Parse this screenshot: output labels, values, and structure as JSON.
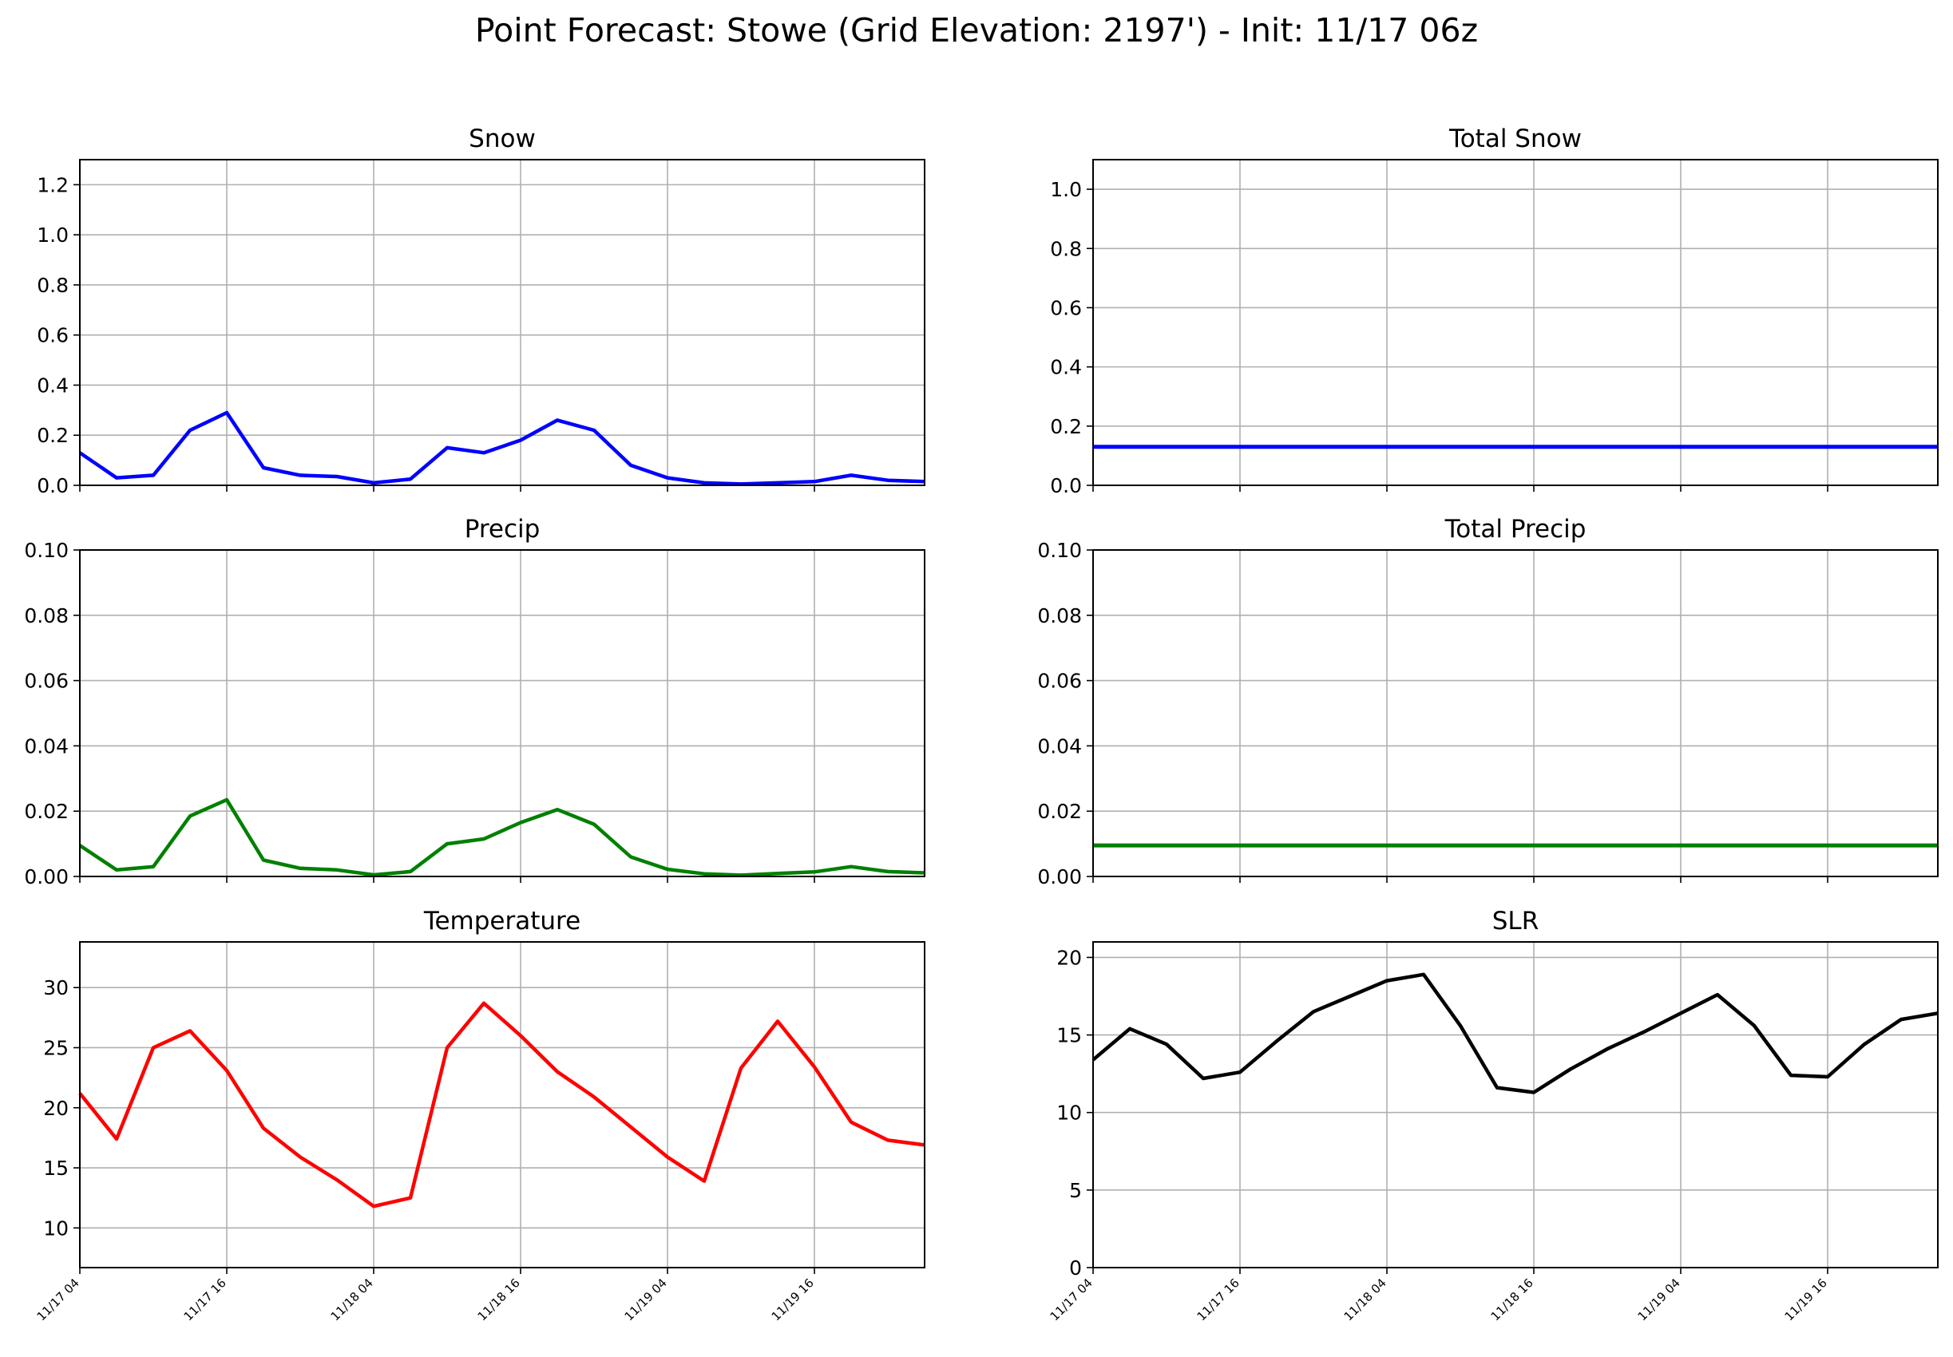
{
  "title": "Point Forecast: Stowe (Grid Elevation: 2197') - Init: 11/17 06z",
  "chart_data": [
    {
      "type": "line",
      "title": "Snow",
      "color": "#0000ff",
      "x_hours": [
        0,
        6,
        12,
        18,
        24,
        30,
        36,
        42,
        48,
        54,
        60,
        66,
        72,
        78,
        84,
        90,
        96,
        102,
        108,
        114,
        120,
        126,
        132,
        138
      ],
      "x_tick_labels": [
        "11/17 04",
        "11/17 16",
        "11/18 04",
        "11/18 16",
        "11/19 04",
        "11/19 16"
      ],
      "x_tick_hours": [
        0,
        24,
        48,
        72,
        96,
        120
      ],
      "xlim": [
        0,
        138
      ],
      "values": [
        0.13,
        0.03,
        0.04,
        0.22,
        0.29,
        0.07,
        0.04,
        0.035,
        0.01,
        0.025,
        0.15,
        0.13,
        0.18,
        0.26,
        0.22,
        0.08,
        0.03,
        0.01,
        0.005,
        0.01,
        0.015,
        0.04,
        0.02,
        0.015
      ],
      "ylim": [
        0,
        1.3
      ],
      "y_ticks": [
        0,
        0.2,
        0.4,
        0.6,
        0.8,
        1.0,
        1.2
      ],
      "y_tick_labels": [
        "0.0",
        "0.2",
        "0.4",
        "0.6",
        "0.8",
        "1.0",
        "1.2"
      ],
      "grid": true
    },
    {
      "type": "line",
      "title": "Total Snow",
      "color": "#0000ff",
      "x_hours": [
        0,
        138
      ],
      "x_tick_labels": [
        "11/17 04",
        "11/17 16",
        "11/18 04",
        "11/18 16",
        "11/19 04",
        "11/19 16"
      ],
      "x_tick_hours": [
        0,
        24,
        48,
        72,
        96,
        120
      ],
      "xlim": [
        0,
        138
      ],
      "values": [
        0.13,
        0.13
      ],
      "ylim": [
        0,
        1.1
      ],
      "y_ticks": [
        0,
        0.2,
        0.4,
        0.6,
        0.8,
        1.0
      ],
      "y_tick_labels": [
        "0.0",
        "0.2",
        "0.4",
        "0.6",
        "0.8",
        "1.0"
      ],
      "grid": true
    },
    {
      "type": "line",
      "title": "Precip",
      "color": "#008000",
      "x_hours": [
        0,
        6,
        12,
        18,
        24,
        30,
        36,
        42,
        48,
        54,
        60,
        66,
        72,
        78,
        84,
        90,
        96,
        102,
        108,
        114,
        120,
        126,
        132,
        138
      ],
      "x_tick_labels": [
        "11/17 04",
        "11/17 16",
        "11/18 04",
        "11/18 16",
        "11/19 04",
        "11/19 16"
      ],
      "x_tick_hours": [
        0,
        24,
        48,
        72,
        96,
        120
      ],
      "xlim": [
        0,
        138
      ],
      "values": [
        0.0095,
        0.002,
        0.003,
        0.0185,
        0.0235,
        0.005,
        0.0025,
        0.002,
        0.0005,
        0.0015,
        0.01,
        0.0115,
        0.0165,
        0.0205,
        0.016,
        0.006,
        0.0022,
        0.0008,
        0.0004,
        0.0009,
        0.0014,
        0.003,
        0.0015,
        0.0011
      ],
      "ylim": [
        0,
        0.1
      ],
      "y_ticks": [
        0,
        0.02,
        0.04,
        0.06,
        0.08,
        0.1
      ],
      "y_tick_labels": [
        "0.00",
        "0.02",
        "0.04",
        "0.06",
        "0.08",
        "0.10"
      ],
      "grid": true
    },
    {
      "type": "line",
      "title": "Total Precip",
      "color": "#008000",
      "x_hours": [
        0,
        138
      ],
      "x_tick_labels": [
        "11/17 04",
        "11/17 16",
        "11/18 04",
        "11/18 16",
        "11/19 04",
        "11/19 16"
      ],
      "x_tick_hours": [
        0,
        24,
        48,
        72,
        96,
        120
      ],
      "xlim": [
        0,
        138
      ],
      "values": [
        0.0095,
        0.0095
      ],
      "ylim": [
        0,
        0.1
      ],
      "y_ticks": [
        0,
        0.02,
        0.04,
        0.06,
        0.08,
        0.1
      ],
      "y_tick_labels": [
        "0.00",
        "0.02",
        "0.04",
        "0.06",
        "0.08",
        "0.10"
      ],
      "grid": true
    },
    {
      "type": "line",
      "title": "Temperature",
      "color": "#ff0000",
      "x_hours": [
        0,
        6,
        12,
        18,
        24,
        30,
        36,
        42,
        48,
        54,
        60,
        66,
        72,
        78,
        84,
        90,
        96,
        102,
        108,
        114,
        120,
        126,
        132,
        138
      ],
      "x_tick_labels": [
        "11/17 04",
        "11/17 16",
        "11/18 04",
        "11/18 16",
        "11/19 04",
        "11/19 16"
      ],
      "x_tick_hours": [
        0,
        24,
        48,
        72,
        96,
        120
      ],
      "xlim": [
        0,
        138
      ],
      "values": [
        21.2,
        17.4,
        25.0,
        26.4,
        23.1,
        18.3,
        15.9,
        14.0,
        11.8,
        12.5,
        25.0,
        28.7,
        26.0,
        23.0,
        20.9,
        18.4,
        15.9,
        13.9,
        23.3,
        27.2,
        23.4,
        18.8,
        17.3,
        16.9
      ],
      "ylim": [
        6.7,
        33.8
      ],
      "y_ticks": [
        10,
        15,
        20,
        25,
        30
      ],
      "y_tick_labels": [
        "10",
        "15",
        "20",
        "25",
        "30"
      ],
      "grid": true
    },
    {
      "type": "line",
      "title": "SLR",
      "color": "#000000",
      "x_hours": [
        0,
        6,
        12,
        18,
        24,
        30,
        36,
        42,
        48,
        54,
        60,
        66,
        72,
        78,
        84,
        90,
        96,
        102,
        108,
        114,
        120,
        126,
        132,
        138
      ],
      "x_tick_labels": [
        "11/17 04",
        "11/17 16",
        "11/18 04",
        "11/18 16",
        "11/19 04",
        "11/19 16"
      ],
      "x_tick_hours": [
        0,
        24,
        48,
        72,
        96,
        120
      ],
      "xlim": [
        0,
        138
      ],
      "values": [
        13.4,
        15.4,
        14.4,
        12.2,
        12.6,
        14.6,
        16.5,
        17.5,
        18.5,
        18.9,
        15.6,
        11.6,
        11.3,
        12.8,
        14.1,
        15.2,
        16.4,
        17.6,
        15.6,
        12.4,
        12.3,
        14.4,
        16.0,
        16.4
      ],
      "ylim": [
        0,
        21
      ],
      "y_ticks": [
        0,
        5,
        10,
        15,
        20
      ],
      "y_tick_labels": [
        "0",
        "5",
        "10",
        "15",
        "20"
      ],
      "grid": true
    }
  ]
}
